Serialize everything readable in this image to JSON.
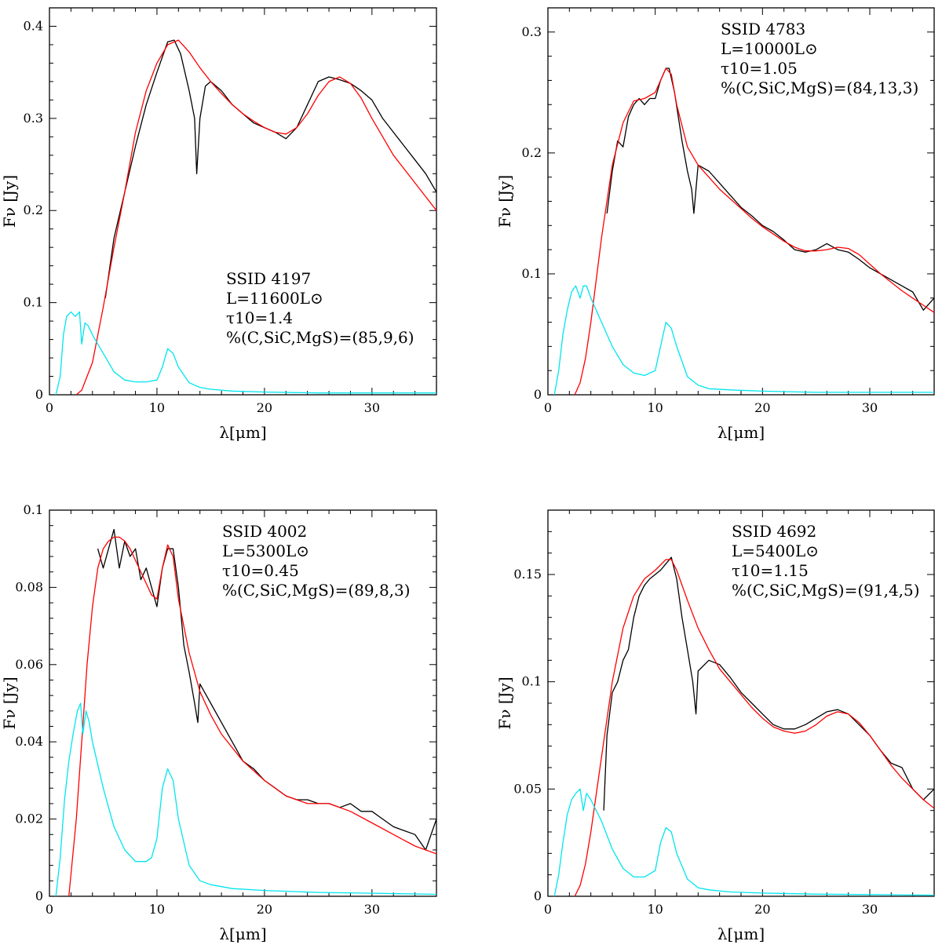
{
  "chart_data": [
    {
      "type": "line",
      "id": "ssid-4197",
      "xlabel": "λ[μm]",
      "ylabel": "Fν [Jy]",
      "xlim": [
        0,
        36
      ],
      "ylim": [
        0,
        0.42
      ],
      "xticks": [
        0,
        10,
        20,
        30
      ],
      "yticks": [
        0,
        0.1,
        0.2,
        0.3,
        0.4
      ],
      "xtick_labels": [
        "0",
        "10",
        "20",
        "30"
      ],
      "ytick_labels": [
        "0",
        "0.1",
        "0.2",
        "0.3",
        "0.4"
      ],
      "annotation": [
        "SSID 4197",
        "L=11600L⊙",
        "τ10=1.4",
        "%(C,SiC,MgS)=(85,9,6)"
      ],
      "series": [
        {
          "color": "#000000",
          "x": [
            5.2,
            6,
            7,
            8,
            9,
            10,
            11,
            11.6,
            12.2,
            13,
            13.5,
            13.7,
            14,
            14.5,
            15,
            16,
            17,
            18,
            19,
            20,
            21,
            22,
            23,
            24,
            25,
            26,
            27,
            28,
            29,
            30,
            31,
            32,
            33,
            34,
            35,
            36
          ],
          "y": [
            0.105,
            0.17,
            0.22,
            0.27,
            0.315,
            0.35,
            0.383,
            0.385,
            0.37,
            0.33,
            0.3,
            0.24,
            0.3,
            0.335,
            0.34,
            0.33,
            0.315,
            0.305,
            0.295,
            0.29,
            0.285,
            0.278,
            0.29,
            0.315,
            0.34,
            0.345,
            0.342,
            0.338,
            0.33,
            0.32,
            0.3,
            0.285,
            0.27,
            0.255,
            0.24,
            0.22
          ]
        },
        {
          "color": "#ff0000",
          "x": [
            2.5,
            3,
            4,
            5,
            6,
            7,
            8,
            9,
            10,
            11,
            12,
            13,
            14,
            15,
            16,
            17,
            18,
            19,
            20,
            21,
            22,
            23,
            24,
            25,
            26,
            27,
            28,
            29,
            30,
            31,
            32,
            33,
            34,
            35,
            36
          ],
          "y": [
            0,
            0.005,
            0.035,
            0.095,
            0.16,
            0.22,
            0.285,
            0.33,
            0.36,
            0.38,
            0.385,
            0.372,
            0.355,
            0.34,
            0.327,
            0.315,
            0.305,
            0.297,
            0.29,
            0.285,
            0.283,
            0.29,
            0.305,
            0.325,
            0.34,
            0.345,
            0.338,
            0.322,
            0.3,
            0.28,
            0.26,
            0.245,
            0.23,
            0.215,
            0.2
          ]
        },
        {
          "color": "#00e5ee",
          "x": [
            0.6,
            1,
            1.3,
            1.6,
            2,
            2.4,
            2.8,
            3,
            3.3,
            3.6,
            4,
            5,
            6,
            7,
            8,
            9,
            10,
            10.5,
            11,
            11.5,
            12,
            13,
            14,
            15,
            17,
            20,
            25,
            30,
            36
          ],
          "y": [
            0,
            0.02,
            0.065,
            0.085,
            0.09,
            0.085,
            0.09,
            0.055,
            0.078,
            0.075,
            0.065,
            0.045,
            0.025,
            0.016,
            0.014,
            0.014,
            0.016,
            0.03,
            0.05,
            0.045,
            0.03,
            0.013,
            0.008,
            0.006,
            0.004,
            0.003,
            0.002,
            0.002,
            0.002
          ]
        }
      ]
    },
    {
      "type": "line",
      "id": "ssid-4783",
      "xlabel": "λ[μm]",
      "ylabel": "Fν [Jy]",
      "xlim": [
        0,
        36
      ],
      "ylim": [
        0,
        0.32
      ],
      "xticks": [
        0,
        10,
        20,
        30
      ],
      "yticks": [
        0,
        0.1,
        0.2,
        0.3
      ],
      "xtick_labels": [
        "0",
        "10",
        "20",
        "30"
      ],
      "ytick_labels": [
        "0",
        "0.1",
        "0.2",
        "0.3"
      ],
      "annotation": [
        "SSID 4783",
        "L=10000L⊙",
        "τ10=1.05",
        "%(C,SiC,MgS)=(84,13,3)"
      ],
      "series": [
        {
          "color": "#000000",
          "x": [
            5.5,
            6,
            6.5,
            7,
            7.5,
            8,
            8.5,
            9,
            9.5,
            10,
            10.5,
            11,
            11.3,
            11.8,
            12.5,
            13,
            13.4,
            13.6,
            14,
            15,
            16,
            17,
            18,
            19,
            20,
            21,
            22,
            23,
            24,
            25,
            26,
            27,
            28,
            29,
            30,
            31,
            32,
            33,
            34,
            35,
            36
          ],
          "y": [
            0.15,
            0.185,
            0.21,
            0.205,
            0.23,
            0.24,
            0.245,
            0.24,
            0.245,
            0.245,
            0.26,
            0.27,
            0.27,
            0.25,
            0.21,
            0.185,
            0.17,
            0.15,
            0.19,
            0.185,
            0.175,
            0.165,
            0.155,
            0.148,
            0.14,
            0.135,
            0.128,
            0.12,
            0.118,
            0.12,
            0.125,
            0.12,
            0.118,
            0.112,
            0.105,
            0.1,
            0.095,
            0.09,
            0.085,
            0.07,
            0.08
          ]
        },
        {
          "color": "#ff0000",
          "x": [
            2.5,
            3,
            3.5,
            4,
            5,
            6,
            7,
            8,
            9,
            10,
            11,
            11.5,
            12,
            13,
            14,
            15,
            16,
            17,
            18,
            19,
            20,
            21,
            22,
            23,
            24,
            25,
            26,
            27,
            28,
            29,
            30,
            31,
            32,
            33,
            34,
            35,
            36
          ],
          "y": [
            0,
            0.01,
            0.03,
            0.06,
            0.13,
            0.19,
            0.225,
            0.243,
            0.245,
            0.25,
            0.27,
            0.265,
            0.24,
            0.205,
            0.19,
            0.18,
            0.17,
            0.162,
            0.154,
            0.146,
            0.139,
            0.133,
            0.127,
            0.122,
            0.119,
            0.119,
            0.12,
            0.122,
            0.121,
            0.116,
            0.108,
            0.1,
            0.093,
            0.086,
            0.08,
            0.074,
            0.068
          ]
        },
        {
          "color": "#00e5ee",
          "x": [
            0.6,
            1,
            1.4,
            1.8,
            2.2,
            2.6,
            3,
            3.3,
            3.6,
            4,
            5,
            6,
            7,
            8,
            9,
            10,
            10.5,
            11,
            11.5,
            12,
            13,
            14,
            15,
            17,
            20,
            25,
            30,
            36
          ],
          "y": [
            0,
            0.02,
            0.05,
            0.07,
            0.085,
            0.09,
            0.08,
            0.09,
            0.09,
            0.08,
            0.06,
            0.04,
            0.025,
            0.018,
            0.016,
            0.02,
            0.04,
            0.06,
            0.055,
            0.04,
            0.015,
            0.008,
            0.005,
            0.004,
            0.003,
            0.002,
            0.002,
            0.002
          ]
        }
      ]
    },
    {
      "type": "line",
      "id": "ssid-4002",
      "xlabel": "λ[μm]",
      "ylabel": "Fν [Jy]",
      "xlim": [
        0,
        36
      ],
      "ylim": [
        0,
        0.1
      ],
      "xticks": [
        0,
        10,
        20,
        30
      ],
      "yticks": [
        0,
        0.02,
        0.04,
        0.06,
        0.08,
        0.1
      ],
      "xtick_labels": [
        "0",
        "10",
        "20",
        "30"
      ],
      "ytick_labels": [
        "0",
        "0.02",
        "0.04",
        "0.06",
        "0.08",
        "0.1"
      ],
      "annotation": [
        "SSID 4002",
        "L=5300L⊙",
        "τ10=0.45",
        "%(C,SiC,MgS)=(89,8,3)"
      ],
      "series": [
        {
          "color": "#000000",
          "x": [
            4.5,
            5,
            5.5,
            6,
            6.5,
            7,
            7.5,
            8,
            8.5,
            9,
            9.5,
            10,
            10.5,
            11,
            11.5,
            12,
            12.5,
            13,
            13.5,
            13.8,
            14,
            15,
            16,
            17,
            18,
            19,
            20,
            21,
            22,
            23,
            24,
            25,
            26,
            27,
            28,
            29,
            30,
            31,
            32,
            33,
            34,
            35,
            36
          ],
          "y": [
            0.09,
            0.085,
            0.09,
            0.095,
            0.085,
            0.092,
            0.088,
            0.09,
            0.082,
            0.085,
            0.08,
            0.075,
            0.085,
            0.09,
            0.09,
            0.08,
            0.065,
            0.058,
            0.05,
            0.045,
            0.055,
            0.05,
            0.045,
            0.04,
            0.035,
            0.033,
            0.03,
            0.028,
            0.026,
            0.025,
            0.025,
            0.024,
            0.024,
            0.023,
            0.024,
            0.022,
            0.022,
            0.02,
            0.018,
            0.017,
            0.016,
            0.012,
            0.02
          ]
        },
        {
          "color": "#ff0000",
          "x": [
            1.8,
            2.5,
            3,
            3.5,
            4,
            4.5,
            5,
            5.5,
            6,
            6.5,
            7,
            7.5,
            8,
            9,
            9.5,
            10,
            10.5,
            11,
            11.5,
            12,
            13,
            14,
            15,
            16,
            18,
            20,
            22,
            24,
            26,
            28,
            30,
            32,
            34,
            36
          ],
          "y": [
            0,
            0.02,
            0.04,
            0.06,
            0.075,
            0.085,
            0.09,
            0.092,
            0.093,
            0.093,
            0.092,
            0.09,
            0.087,
            0.081,
            0.078,
            0.077,
            0.085,
            0.091,
            0.088,
            0.077,
            0.063,
            0.053,
            0.047,
            0.042,
            0.035,
            0.03,
            0.026,
            0.024,
            0.024,
            0.022,
            0.019,
            0.016,
            0.013,
            0.011
          ]
        },
        {
          "color": "#00e5ee",
          "x": [
            0.6,
            1,
            1.4,
            1.8,
            2.2,
            2.6,
            2.9,
            3.1,
            3.4,
            3.7,
            4,
            5,
            6,
            7,
            8,
            9,
            9.5,
            10,
            10.5,
            11,
            11.5,
            12,
            13,
            14,
            15,
            17,
            20,
            25,
            30,
            36
          ],
          "y": [
            0,
            0.01,
            0.025,
            0.035,
            0.042,
            0.048,
            0.05,
            0.042,
            0.048,
            0.045,
            0.04,
            0.028,
            0.018,
            0.012,
            0.009,
            0.009,
            0.01,
            0.015,
            0.028,
            0.033,
            0.03,
            0.02,
            0.008,
            0.004,
            0.003,
            0.002,
            0.0015,
            0.001,
            0.0008,
            0.0005
          ]
        }
      ]
    },
    {
      "type": "line",
      "id": "ssid-4692",
      "xlabel": "λ[μm]",
      "ylabel": "Fν [Jy]",
      "xlim": [
        0,
        36
      ],
      "ylim": [
        0,
        0.18
      ],
      "xticks": [
        0,
        10,
        20,
        30
      ],
      "yticks": [
        0,
        0.05,
        0.1,
        0.15
      ],
      "xtick_labels": [
        "0",
        "10",
        "20",
        "30"
      ],
      "ytick_labels": [
        "0",
        "0.05",
        "0.1",
        "0.15"
      ],
      "annotation": [
        "SSID 4692",
        "L=5400L⊙",
        "τ10=1.15",
        "%(C,SiC,MgS)=(91,4,5)"
      ],
      "series": [
        {
          "color": "#000000",
          "x": [
            5.2,
            5.5,
            6,
            6.5,
            7,
            7.5,
            8,
            8.5,
            9,
            9.5,
            10,
            10.5,
            11,
            11.5,
            12,
            12.5,
            13,
            13.5,
            13.8,
            14,
            15,
            16,
            17,
            18,
            19,
            20,
            21,
            22,
            23,
            24,
            25,
            26,
            27,
            28,
            29,
            30,
            31,
            32,
            33,
            34,
            35,
            36
          ],
          "y": [
            0.04,
            0.075,
            0.095,
            0.1,
            0.11,
            0.115,
            0.13,
            0.14,
            0.145,
            0.148,
            0.15,
            0.152,
            0.155,
            0.158,
            0.148,
            0.13,
            0.115,
            0.1,
            0.085,
            0.105,
            0.11,
            0.108,
            0.102,
            0.095,
            0.09,
            0.085,
            0.08,
            0.078,
            0.078,
            0.08,
            0.083,
            0.086,
            0.087,
            0.085,
            0.08,
            0.075,
            0.068,
            0.062,
            0.06,
            0.05,
            0.045,
            0.05
          ]
        },
        {
          "color": "#ff0000",
          "x": [
            2.5,
            3,
            3.5,
            4,
            5,
            6,
            7,
            8,
            9,
            10,
            11,
            11.5,
            12,
            13,
            14,
            15,
            16,
            17,
            18,
            19,
            20,
            21,
            22,
            23,
            24,
            25,
            26,
            27,
            28,
            29,
            30,
            31,
            32,
            33,
            34,
            35,
            36
          ],
          "y": [
            0,
            0.005,
            0.015,
            0.03,
            0.065,
            0.1,
            0.125,
            0.14,
            0.148,
            0.152,
            0.157,
            0.157,
            0.152,
            0.138,
            0.125,
            0.115,
            0.106,
            0.1,
            0.094,
            0.088,
            0.083,
            0.079,
            0.077,
            0.076,
            0.077,
            0.08,
            0.084,
            0.086,
            0.085,
            0.081,
            0.075,
            0.068,
            0.061,
            0.055,
            0.05,
            0.045,
            0.041
          ]
        },
        {
          "color": "#00e5ee",
          "x": [
            0.6,
            1,
            1.4,
            1.8,
            2.2,
            2.6,
            3,
            3.3,
            3.6,
            4,
            5,
            6,
            7,
            8,
            9,
            10,
            10.5,
            11,
            11.5,
            12,
            13,
            14,
            15,
            17,
            20,
            25,
            30,
            36
          ],
          "y": [
            0,
            0.01,
            0.025,
            0.038,
            0.045,
            0.048,
            0.05,
            0.04,
            0.048,
            0.045,
            0.035,
            0.022,
            0.013,
            0.009,
            0.009,
            0.012,
            0.025,
            0.032,
            0.03,
            0.02,
            0.008,
            0.004,
            0.003,
            0.002,
            0.0015,
            0.001,
            0.0008,
            0.0005
          ]
        }
      ]
    }
  ]
}
